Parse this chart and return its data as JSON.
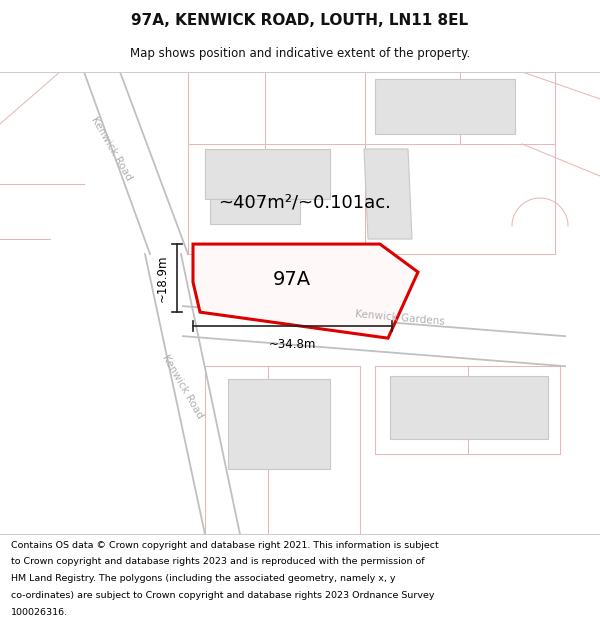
{
  "title": "97A, KENWICK ROAD, LOUTH, LN11 8EL",
  "subtitle": "Map shows position and indicative extent of the property.",
  "footer_lines": [
    "Contains OS data © Crown copyright and database right 2021. This information is subject",
    "to Crown copyright and database rights 2023 and is reproduced with the permission of",
    "HM Land Registry. The polygons (including the associated geometry, namely x, y",
    "co-ordinates) are subject to Crown copyright and database rights 2023 Ordnance Survey",
    "100026316."
  ],
  "bg_color": "#f5f4f2",
  "white": "#ffffff",
  "road_line": "#c8a8a8",
  "plot_line": "#e8b8b8",
  "building_fill": "#e2e2e2",
  "building_edge": "#c8c8c8",
  "prop_outline": "#dd0000",
  "prop_fill": "#fff8f8",
  "road_label": "#b0b0b0",
  "dim_color": "#222222",
  "text_dark": "#111111",
  "area_text": "~407m²/~0.101ac.",
  "prop_label": "97A",
  "dim_w": "~34.8m",
  "dim_h": "~18.9m",
  "road_name_upper": "Kenwick Road",
  "road_name_lower": "Kenwick Road",
  "road_name_gardens": "Kenwick Gardens"
}
